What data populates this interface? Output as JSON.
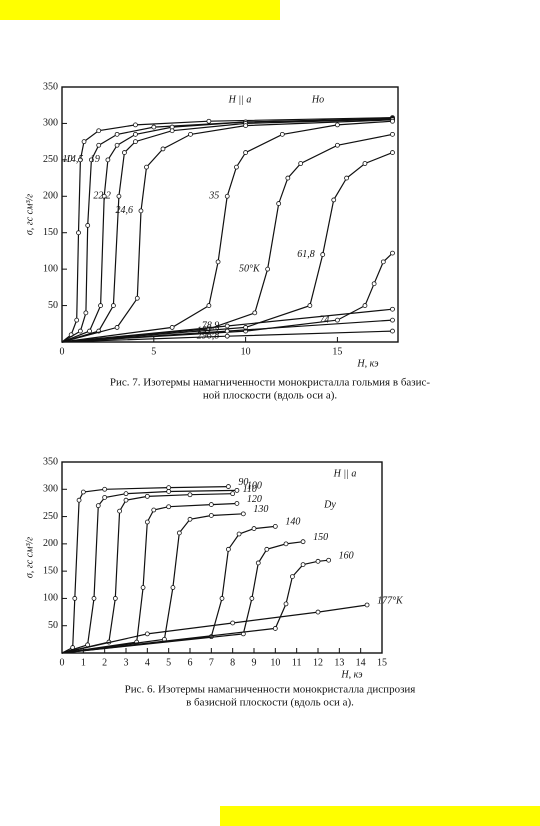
{
  "chart_data": [
    {
      "type": "line",
      "annotations": [
        "H || a",
        "Ho"
      ],
      "y_label": "σ, гс см³/г",
      "x_label": "H, кэ",
      "caption": [
        "Рис. 7. Изотермы намагниченности монокристалла гольмия в базис-",
        "ной плоскости (вдоль оси a)."
      ],
      "xlim": [
        0,
        18.3
      ],
      "ylim": [
        0,
        350
      ],
      "xticks": [
        0,
        5,
        10,
        15
      ],
      "yticks": [
        50,
        100,
        150,
        200,
        250,
        300,
        350
      ],
      "series": [
        {
          "name": "10",
          "color": "#111111",
          "x": [
            0,
            0.5,
            0.8,
            0.9,
            1.0,
            1.2,
            2,
            4,
            8,
            18
          ],
          "values": [
            0,
            10,
            30,
            150,
            250,
            275,
            290,
            298,
            303,
            308
          ]
        },
        {
          "name": "14,5",
          "color": "#111111",
          "x": [
            0,
            1,
            1.3,
            1.4,
            1.6,
            2,
            3,
            5,
            10,
            18
          ],
          "values": [
            0,
            15,
            40,
            160,
            250,
            270,
            285,
            295,
            302,
            307
          ]
        },
        {
          "name": "19",
          "color": "#111111",
          "x": [
            0,
            1.5,
            2.1,
            2.3,
            2.5,
            3,
            4,
            6,
            10,
            18
          ],
          "values": [
            0,
            15,
            50,
            200,
            250,
            270,
            285,
            295,
            302,
            306
          ]
        },
        {
          "name": "22,2",
          "color": "#111111",
          "x": [
            0,
            2,
            2.8,
            3.1,
            3.4,
            4,
            6,
            10,
            18
          ],
          "values": [
            0,
            15,
            50,
            200,
            260,
            275,
            290,
            300,
            306
          ]
        },
        {
          "name": "24,6",
          "color": "#111111",
          "x": [
            0,
            3,
            4.1,
            4.3,
            4.6,
            5.5,
            7,
            10,
            18
          ],
          "values": [
            0,
            20,
            60,
            180,
            240,
            265,
            285,
            297,
            305
          ]
        },
        {
          "name": "35",
          "color": "#111111",
          "x": [
            0,
            6,
            8,
            8.5,
            9,
            9.5,
            10,
            12,
            15,
            18
          ],
          "values": [
            0,
            20,
            50,
            110,
            200,
            240,
            260,
            285,
            298,
            303
          ]
        },
        {
          "name": "50°K",
          "color": "#111111",
          "x": [
            0,
            8,
            10.5,
            11.2,
            11.8,
            12.3,
            13,
            15,
            18
          ],
          "values": [
            0,
            18,
            40,
            100,
            190,
            225,
            245,
            270,
            285
          ]
        },
        {
          "name": "61,8",
          "color": "#111111",
          "x": [
            0,
            10,
            13.5,
            14.2,
            14.8,
            15.5,
            16.5,
            18
          ],
          "values": [
            0,
            20,
            50,
            120,
            195,
            225,
            245,
            260
          ]
        },
        {
          "name": "74",
          "color": "#111111",
          "x": [
            0,
            10,
            15,
            16.5,
            17,
            17.5,
            18
          ],
          "values": [
            0,
            15,
            30,
            50,
            80,
            110,
            122
          ]
        },
        {
          "name": "78,9",
          "color": "#111111",
          "x": [
            0,
            9,
            18
          ],
          "values": [
            0,
            22,
            45
          ]
        },
        {
          "name": "151,2",
          "color": "#111111",
          "x": [
            0,
            9,
            18
          ],
          "values": [
            0,
            15,
            30
          ]
        },
        {
          "name": "296,8",
          "color": "#111111",
          "x": [
            0,
            9,
            18
          ],
          "values": [
            0,
            8,
            15
          ]
        }
      ]
    },
    {
      "type": "line",
      "annotations": [
        "H || a",
        "Dy"
      ],
      "y_label": "σ, гс см³/г",
      "x_label": "H, кэ",
      "caption": [
        "Рис. 6. Изотермы намагниченности монокристалла диспрозия",
        "в базисной плоскости (вдоль оси a)."
      ],
      "xlim": [
        0,
        15
      ],
      "ylim": [
        0,
        350
      ],
      "xticks": [
        0,
        1,
        2,
        3,
        4,
        5,
        6,
        7,
        8,
        9,
        10,
        11,
        12,
        13,
        14,
        15
      ],
      "yticks": [
        50,
        100,
        150,
        200,
        250,
        300,
        350
      ],
      "series": [
        {
          "name": "90",
          "color": "#111111",
          "x": [
            0,
            0.5,
            0.6,
            0.8,
            1,
            2,
            5,
            7.8
          ],
          "values": [
            0,
            10,
            100,
            280,
            295,
            300,
            303,
            305
          ]
        },
        {
          "name": "100",
          "color": "#111111",
          "x": [
            0,
            1.2,
            1.5,
            1.7,
            2,
            3,
            5,
            8.2
          ],
          "values": [
            0,
            15,
            100,
            270,
            285,
            292,
            296,
            298
          ]
        },
        {
          "name": "110",
          "color": "#111111",
          "x": [
            0,
            2.2,
            2.5,
            2.7,
            3,
            4,
            6,
            8
          ],
          "values": [
            0,
            20,
            100,
            260,
            280,
            287,
            290,
            292
          ]
        },
        {
          "name": "120",
          "color": "#111111",
          "x": [
            0,
            3.5,
            3.8,
            4,
            4.3,
            5,
            7,
            8.2
          ],
          "values": [
            0,
            20,
            120,
            240,
            262,
            268,
            272,
            274
          ]
        },
        {
          "name": "130",
          "color": "#111111",
          "x": [
            0,
            4.8,
            5.2,
            5.5,
            6,
            7,
            8.5
          ],
          "values": [
            0,
            25,
            120,
            220,
            245,
            252,
            255
          ]
        },
        {
          "name": "140",
          "color": "#111111",
          "x": [
            0,
            7,
            7.5,
            7.8,
            8.3,
            9,
            10
          ],
          "values": [
            0,
            30,
            100,
            190,
            218,
            228,
            232
          ]
        },
        {
          "name": "150",
          "color": "#111111",
          "x": [
            0,
            8.5,
            8.9,
            9.2,
            9.6,
            10.5,
            11.3
          ],
          "values": [
            0,
            35,
            100,
            165,
            190,
            200,
            204
          ]
        },
        {
          "name": "160",
          "color": "#111111",
          "x": [
            0,
            10,
            10.5,
            10.8,
            11.3,
            12,
            12.5
          ],
          "values": [
            0,
            45,
            90,
            140,
            162,
            168,
            170
          ]
        },
        {
          "name": "177°K",
          "color": "#111111",
          "x": [
            0,
            4,
            8,
            12,
            14.3
          ],
          "values": [
            0,
            35,
            55,
            75,
            88
          ]
        }
      ]
    }
  ]
}
